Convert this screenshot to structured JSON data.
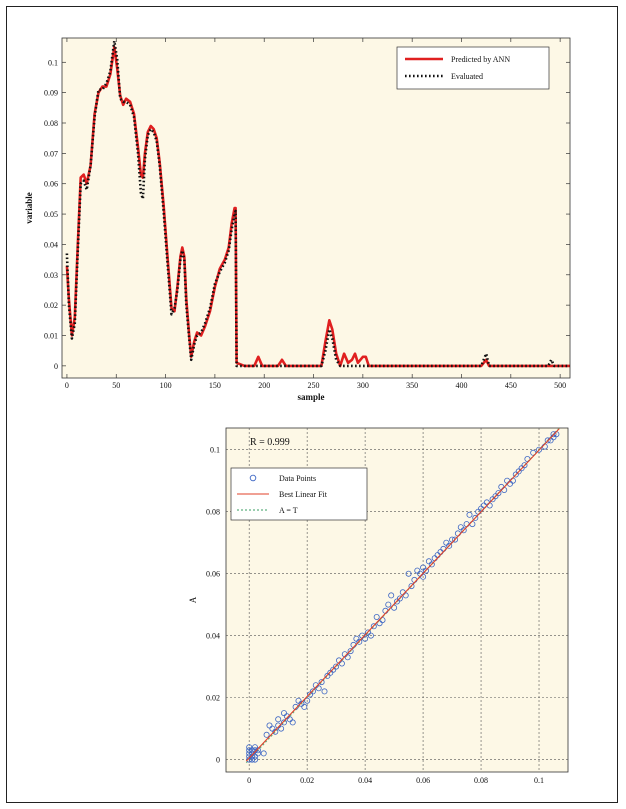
{
  "chart_data": [
    {
      "type": "line",
      "xlabel": "sample",
      "ylabel": "variable",
      "xlim": [
        -5,
        510
      ],
      "ylim": [
        -0.004,
        0.108
      ],
      "xticks": [
        "0",
        "50",
        "100",
        "150",
        "200",
        "250",
        "300",
        "350",
        "400",
        "450",
        "500"
      ],
      "yticks": [
        "0",
        "0.01",
        "0.02",
        "0.03",
        "0.04",
        "0.05",
        "0.06",
        "0.07",
        "0.08",
        "0.09",
        "0.1"
      ],
      "legend_placement": "top-right",
      "series": [
        {
          "name": "Predicted by ANN",
          "color": "#e02020",
          "style": "solid",
          "points": [
            [
              0,
              0.033
            ],
            [
              2,
              0.022
            ],
            [
              5,
              0.01
            ],
            [
              8,
              0.016
            ],
            [
              11,
              0.04
            ],
            [
              14,
              0.062
            ],
            [
              17,
              0.063
            ],
            [
              20,
              0.06
            ],
            [
              24,
              0.066
            ],
            [
              28,
              0.083
            ],
            [
              32,
              0.09
            ],
            [
              36,
              0.092
            ],
            [
              40,
              0.092
            ],
            [
              44,
              0.096
            ],
            [
              48,
              0.105
            ],
            [
              51,
              0.098
            ],
            [
              54,
              0.089
            ],
            [
              57,
              0.086
            ],
            [
              60,
              0.088
            ],
            [
              64,
              0.087
            ],
            [
              68,
              0.083
            ],
            [
              72,
              0.072
            ],
            [
              75,
              0.063
            ],
            [
              77,
              0.062
            ],
            [
              79,
              0.07
            ],
            [
              82,
              0.077
            ],
            [
              85,
              0.079
            ],
            [
              88,
              0.078
            ],
            [
              91,
              0.075
            ],
            [
              94,
              0.067
            ],
            [
              98,
              0.053
            ],
            [
              102,
              0.036
            ],
            [
              106,
              0.019
            ],
            [
              109,
              0.018
            ],
            [
              112,
              0.026
            ],
            [
              115,
              0.036
            ],
            [
              117,
              0.039
            ],
            [
              119,
              0.036
            ],
            [
              121,
              0.022
            ],
            [
              124,
              0.01
            ],
            [
              126,
              0.003
            ],
            [
              129,
              0.008
            ],
            [
              132,
              0.011
            ],
            [
              136,
              0.01
            ],
            [
              140,
              0.013
            ],
            [
              145,
              0.018
            ],
            [
              150,
              0.026
            ],
            [
              155,
              0.032
            ],
            [
              160,
              0.035
            ],
            [
              164,
              0.039
            ],
            [
              167,
              0.047
            ],
            [
              170,
              0.052
            ],
            [
              171,
              0.052
            ],
            [
              172,
              0.001
            ],
            [
              180,
              0.0
            ],
            [
              190,
              0.0
            ],
            [
              194,
              0.003
            ],
            [
              198,
              0.0
            ],
            [
              214,
              0.0
            ],
            [
              218,
              0.002
            ],
            [
              222,
              0.0
            ],
            [
              258,
              0.0
            ],
            [
              262,
              0.008
            ],
            [
              266,
              0.015
            ],
            [
              269,
              0.012
            ],
            [
              273,
              0.004
            ],
            [
              277,
              0.0
            ],
            [
              281,
              0.004
            ],
            [
              285,
              0.001
            ],
            [
              289,
              0.002
            ],
            [
              292,
              0.004
            ],
            [
              295,
              0.001
            ],
            [
              300,
              0.003
            ],
            [
              303,
              0.003
            ],
            [
              306,
              0.0
            ],
            [
              420,
              0.0
            ],
            [
              425,
              0.002
            ],
            [
              428,
              0.0
            ],
            [
              510,
              0.0
            ]
          ]
        },
        {
          "name": "Evaluated",
          "color": "#111111",
          "style": "dotted",
          "points": [
            [
              0,
              0.037
            ],
            [
              2,
              0.02
            ],
            [
              5,
              0.009
            ],
            [
              8,
              0.014
            ],
            [
              11,
              0.038
            ],
            [
              14,
              0.06
            ],
            [
              17,
              0.061
            ],
            [
              20,
              0.058
            ],
            [
              24,
              0.066
            ],
            [
              28,
              0.082
            ],
            [
              32,
              0.091
            ],
            [
              36,
              0.091
            ],
            [
              40,
              0.093
            ],
            [
              44,
              0.097
            ],
            [
              48,
              0.107
            ],
            [
              51,
              0.101
            ],
            [
              54,
              0.088
            ],
            [
              57,
              0.087
            ],
            [
              60,
              0.087
            ],
            [
              64,
              0.086
            ],
            [
              68,
              0.082
            ],
            [
              72,
              0.07
            ],
            [
              75,
              0.057
            ],
            [
              77,
              0.055
            ],
            [
              79,
              0.068
            ],
            [
              82,
              0.076
            ],
            [
              85,
              0.078
            ],
            [
              88,
              0.077
            ],
            [
              91,
              0.074
            ],
            [
              94,
              0.066
            ],
            [
              98,
              0.051
            ],
            [
              102,
              0.034
            ],
            [
              106,
              0.017
            ],
            [
              109,
              0.019
            ],
            [
              112,
              0.025
            ],
            [
              115,
              0.035
            ],
            [
              117,
              0.038
            ],
            [
              119,
              0.035
            ],
            [
              121,
              0.02
            ],
            [
              124,
              0.009
            ],
            [
              126,
              0.002
            ],
            [
              129,
              0.007
            ],
            [
              132,
              0.01
            ],
            [
              136,
              0.011
            ],
            [
              140,
              0.014
            ],
            [
              145,
              0.019
            ],
            [
              150,
              0.027
            ],
            [
              155,
              0.031
            ],
            [
              160,
              0.034
            ],
            [
              164,
              0.038
            ],
            [
              167,
              0.045
            ],
            [
              170,
              0.05
            ],
            [
              171,
              0.051
            ],
            [
              172,
              0.0
            ],
            [
              258,
              0.0
            ],
            [
              262,
              0.005
            ],
            [
              266,
              0.012
            ],
            [
              269,
              0.009
            ],
            [
              273,
              0.002
            ],
            [
              277,
              0.0
            ],
            [
              420,
              0.0
            ],
            [
              425,
              0.004
            ],
            [
              428,
              0.0
            ],
            [
              488,
              0.0
            ],
            [
              491,
              0.002
            ],
            [
              494,
              0.0
            ],
            [
              510,
              0.0
            ]
          ]
        }
      ]
    },
    {
      "type": "scatter",
      "xlabel": "",
      "ylabel": "A",
      "xlim": [
        -0.008,
        0.11
      ],
      "ylim": [
        -0.004,
        0.107
      ],
      "xticks": [
        "0",
        "0.02",
        "0.04",
        "0.06",
        "0.08",
        "0.1"
      ],
      "yticks": [
        "0",
        "0.02",
        "0.04",
        "0.06",
        "0.08",
        "0.1"
      ],
      "grid": true,
      "annotation": "R = 0.999",
      "legend_placement": "top-left",
      "legend": [
        "Data Points",
        "Best Linear Fit",
        "A = T"
      ],
      "fit_line": {
        "x": [
          -0.001,
          0.107
        ],
        "y": [
          -0.0005,
          0.1068
        ]
      },
      "identity_line": {
        "x": [
          -0.001,
          0.107
        ],
        "y": [
          -0.001,
          0.107
        ]
      },
      "points": [
        [
          0,
          0
        ],
        [
          0,
          0.001
        ],
        [
          0,
          0.002
        ],
        [
          0,
          0.003
        ],
        [
          0,
          0.004
        ],
        [
          0.001,
          0.0
        ],
        [
          0.001,
          0.002
        ],
        [
          0.001,
          0.003
        ],
        [
          0.002,
          0.001
        ],
        [
          0.002,
          0.003
        ],
        [
          0.002,
          0.004
        ],
        [
          0.003,
          0.002
        ],
        [
          0.003,
          0.003
        ],
        [
          0.001,
          0.001
        ],
        [
          0.002,
          0.0
        ],
        [
          0.005,
          0.002
        ],
        [
          0.006,
          0.008
        ],
        [
          0.007,
          0.011
        ],
        [
          0.008,
          0.01
        ],
        [
          0.009,
          0.009
        ],
        [
          0.01,
          0.011
        ],
        [
          0.01,
          0.013
        ],
        [
          0.011,
          0.01
        ],
        [
          0.012,
          0.012
        ],
        [
          0.012,
          0.015
        ],
        [
          0.013,
          0.014
        ],
        [
          0.014,
          0.013
        ],
        [
          0.015,
          0.012
        ],
        [
          0.016,
          0.017
        ],
        [
          0.017,
          0.019
        ],
        [
          0.018,
          0.018
        ],
        [
          0.019,
          0.017
        ],
        [
          0.02,
          0.019
        ],
        [
          0.021,
          0.021
        ],
        [
          0.022,
          0.022
        ],
        [
          0.023,
          0.024
        ],
        [
          0.024,
          0.023
        ],
        [
          0.025,
          0.025
        ],
        [
          0.026,
          0.022
        ],
        [
          0.027,
          0.027
        ],
        [
          0.028,
          0.028
        ],
        [
          0.029,
          0.029
        ],
        [
          0.03,
          0.03
        ],
        [
          0.031,
          0.032
        ],
        [
          0.032,
          0.031
        ],
        [
          0.033,
          0.034
        ],
        [
          0.034,
          0.033
        ],
        [
          0.035,
          0.035
        ],
        [
          0.036,
          0.037
        ],
        [
          0.037,
          0.039
        ],
        [
          0.038,
          0.038
        ],
        [
          0.039,
          0.04
        ],
        [
          0.04,
          0.039
        ],
        [
          0.041,
          0.041
        ],
        [
          0.042,
          0.04
        ],
        [
          0.043,
          0.043
        ],
        [
          0.044,
          0.046
        ],
        [
          0.045,
          0.044
        ],
        [
          0.046,
          0.045
        ],
        [
          0.047,
          0.048
        ],
        [
          0.048,
          0.05
        ],
        [
          0.049,
          0.053
        ],
        [
          0.05,
          0.049
        ],
        [
          0.051,
          0.051
        ],
        [
          0.052,
          0.052
        ],
        [
          0.053,
          0.054
        ],
        [
          0.054,
          0.053
        ],
        [
          0.055,
          0.06
        ],
        [
          0.056,
          0.056
        ],
        [
          0.057,
          0.058
        ],
        [
          0.058,
          0.061
        ],
        [
          0.059,
          0.06
        ],
        [
          0.06,
          0.062
        ],
        [
          0.06,
          0.059
        ],
        [
          0.061,
          0.061
        ],
        [
          0.062,
          0.064
        ],
        [
          0.063,
          0.063
        ],
        [
          0.064,
          0.065
        ],
        [
          0.065,
          0.066
        ],
        [
          0.066,
          0.067
        ],
        [
          0.067,
          0.068
        ],
        [
          0.068,
          0.07
        ],
        [
          0.069,
          0.069
        ],
        [
          0.07,
          0.071
        ],
        [
          0.071,
          0.071
        ],
        [
          0.072,
          0.073
        ],
        [
          0.073,
          0.075
        ],
        [
          0.074,
          0.074
        ],
        [
          0.075,
          0.076
        ],
        [
          0.076,
          0.079
        ],
        [
          0.077,
          0.076
        ],
        [
          0.078,
          0.078
        ],
        [
          0.079,
          0.08
        ],
        [
          0.08,
          0.081
        ],
        [
          0.081,
          0.082
        ],
        [
          0.082,
          0.083
        ],
        [
          0.083,
          0.082
        ],
        [
          0.084,
          0.084
        ],
        [
          0.085,
          0.085
        ],
        [
          0.086,
          0.086
        ],
        [
          0.087,
          0.088
        ],
        [
          0.088,
          0.087
        ],
        [
          0.089,
          0.09
        ],
        [
          0.09,
          0.089
        ],
        [
          0.091,
          0.09
        ],
        [
          0.092,
          0.092
        ],
        [
          0.093,
          0.093
        ],
        [
          0.094,
          0.094
        ],
        [
          0.095,
          0.095
        ],
        [
          0.096,
          0.097
        ],
        [
          0.098,
          0.099
        ],
        [
          0.1,
          0.1
        ],
        [
          0.102,
          0.101
        ],
        [
          0.103,
          0.103
        ],
        [
          0.104,
          0.103
        ],
        [
          0.105,
          0.104
        ],
        [
          0.106,
          0.105
        ],
        [
          0.105,
          0.105
        ]
      ]
    }
  ]
}
